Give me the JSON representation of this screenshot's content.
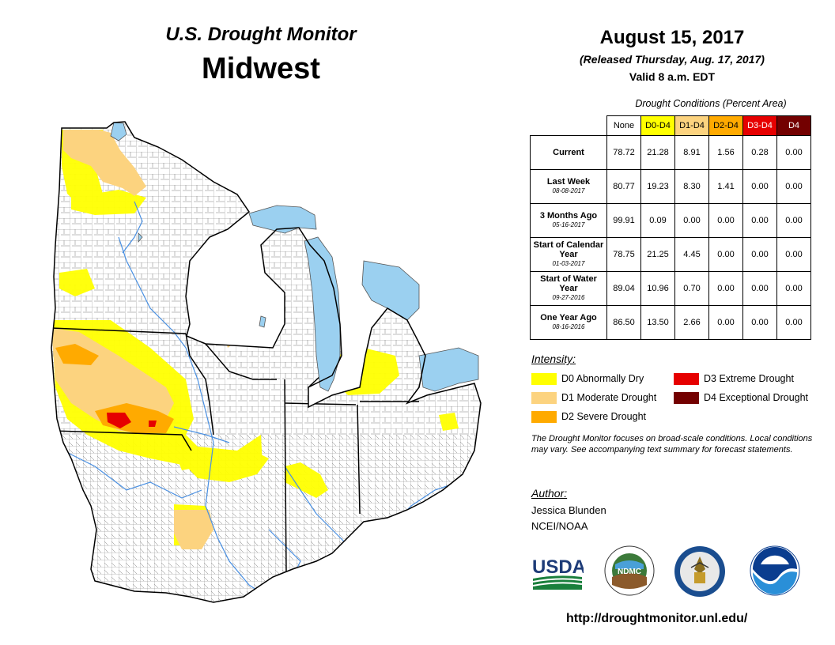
{
  "header": {
    "subtitle": "U.S. Drought Monitor",
    "region": "Midwest",
    "date": "August 15, 2017",
    "released": "(Released Thursday, Aug. 17, 2017)",
    "valid": "Valid 8 a.m. EDT"
  },
  "conditions": {
    "caption": "Drought Conditions (Percent Area)",
    "columns": [
      "None",
      "D0-D4",
      "D1-D4",
      "D2-D4",
      "D3-D4",
      "D4"
    ],
    "column_colors": [
      "#ffffff",
      "#ffff00",
      "#fcd37f",
      "#ffaa00",
      "#e60000",
      "#730000"
    ],
    "rows": [
      {
        "label": "Current",
        "date": "",
        "values": [
          "78.72",
          "21.28",
          "8.91",
          "1.56",
          "0.28",
          "0.00"
        ]
      },
      {
        "label": "Last Week",
        "date": "08-08-2017",
        "values": [
          "80.77",
          "19.23",
          "8.30",
          "1.41",
          "0.00",
          "0.00"
        ]
      },
      {
        "label": "3 Months Ago",
        "date": "05-16-2017",
        "values": [
          "99.91",
          "0.09",
          "0.00",
          "0.00",
          "0.00",
          "0.00"
        ]
      },
      {
        "label": "Start of Calendar Year",
        "date": "01-03-2017",
        "values": [
          "78.75",
          "21.25",
          "4.45",
          "0.00",
          "0.00",
          "0.00"
        ]
      },
      {
        "label": "Start of Water Year",
        "date": "09-27-2016",
        "values": [
          "89.04",
          "10.96",
          "0.70",
          "0.00",
          "0.00",
          "0.00"
        ]
      },
      {
        "label": "One Year Ago",
        "date": "08-16-2016",
        "values": [
          "86.50",
          "13.50",
          "2.66",
          "0.00",
          "0.00",
          "0.00"
        ]
      }
    ]
  },
  "intensity": {
    "title": "Intensity:",
    "items": [
      {
        "label": "D0 Abnormally Dry",
        "color": "#ffff00"
      },
      {
        "label": "D1 Moderate Drought",
        "color": "#fcd37f"
      },
      {
        "label": "D2 Severe Drought",
        "color": "#ffaa00"
      },
      {
        "label": "D3 Extreme Drought",
        "color": "#e60000"
      },
      {
        "label": "D4 Exceptional Drought",
        "color": "#730000"
      }
    ]
  },
  "note": "The Drought Monitor focuses on broad-scale conditions. Local conditions may vary. See accompanying text summary for forecast statements.",
  "author": {
    "title": "Author:",
    "name": "Jessica Blunden",
    "org": "NCEI/NOAA"
  },
  "logos": {
    "usda": "USDA",
    "ndmc": "NDMC",
    "noaa": "NOAA"
  },
  "url": "http://droughtmonitor.unl.edu/",
  "map": {
    "water_color": "#9bd0f0",
    "river_color": "#4a90e2"
  }
}
